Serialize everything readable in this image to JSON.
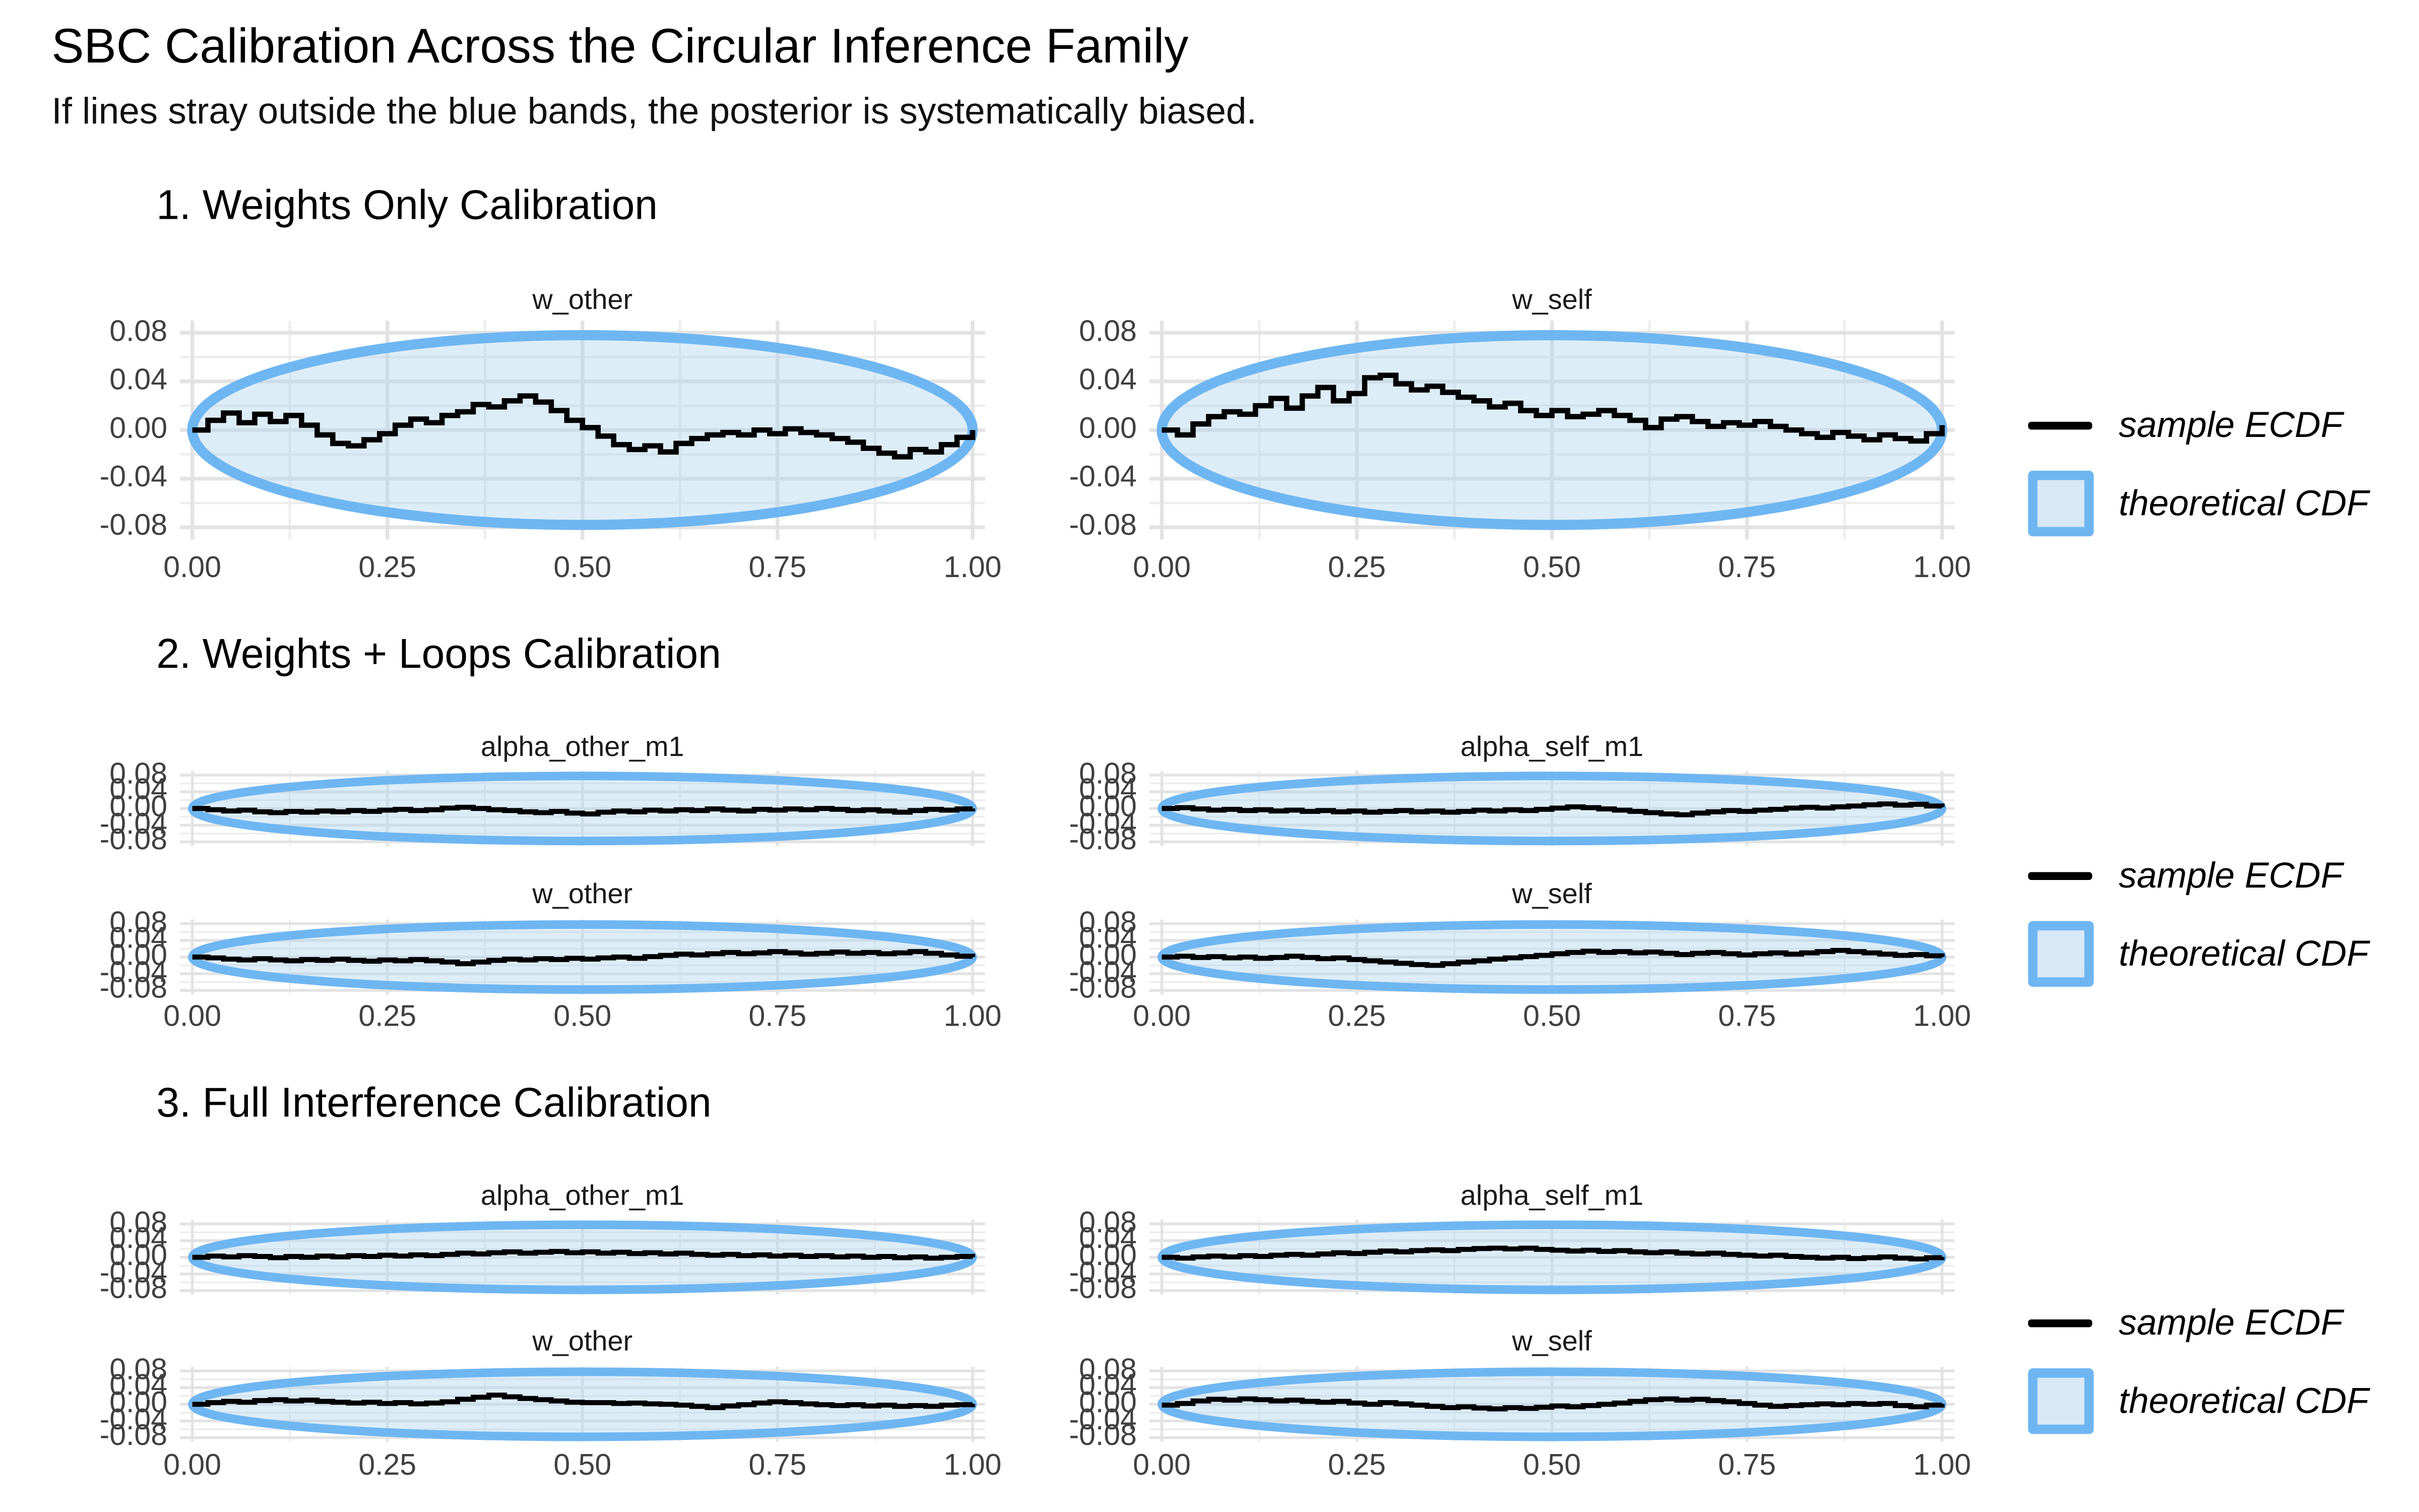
{
  "header": {
    "title": "SBC Calibration Across the Circular Inference Family",
    "subtitle": "If lines stray outside the blue bands, the posterior is systematically biased."
  },
  "legend": {
    "line_label": "sample ECDF",
    "band_label": "theoretical CDF"
  },
  "axis": {
    "x_tick_labels": [
      "0.00",
      "0.25",
      "0.50",
      "0.75",
      "1.00"
    ],
    "x_tick_values": [
      0,
      0.25,
      0.5,
      0.75,
      1
    ],
    "y_tick_labels": [
      "0.08",
      "0.04",
      "0.00",
      "-0.04",
      "-0.08"
    ],
    "y_tick_values": [
      0.08,
      0.04,
      0,
      -0.04,
      -0.08
    ],
    "y_minor_values": [
      0.06,
      0.02,
      -0.02,
      -0.06
    ],
    "x_minor_values": [
      0.125,
      0.375,
      0.625,
      0.875
    ]
  },
  "colors": {
    "band_fill": "#aed4ee",
    "band_border": "#6eb6f2",
    "ecdf_line": "#000000",
    "grid_major": "#e3e3e3",
    "grid_minor": "#ededed",
    "tick_text": "#404040",
    "text": "#000000"
  },
  "chart_data": {
    "type": "line",
    "subtype": "sbc_ecdf_diff_steps",
    "x_range": [
      0,
      1
    ],
    "y_domain": [
      -0.09,
      0.09
    ],
    "x_ticks": [
      0,
      0.25,
      0.5,
      0.75,
      1
    ],
    "y_ticks": [
      0.08,
      0.04,
      0,
      -0.04,
      -0.08
    ],
    "grid": true,
    "legend_position": "right",
    "band": {
      "shape": "ellipse",
      "half_height": 0.078,
      "label": "theoretical CDF"
    },
    "line_label": "sample ECDF",
    "n_points": 51,
    "x_spacing": "uniform",
    "sections": [
      {
        "heading": "1. Weights Only Calibration",
        "panel_size": "large",
        "panels": [
          {
            "title": "w_other",
            "ecdf_diff": [
              0.0,
              0.008,
              0.014,
              0.006,
              0.013,
              0.007,
              0.012,
              0.004,
              -0.004,
              -0.011,
              -0.013,
              -0.008,
              -0.003,
              0.004,
              0.009,
              0.006,
              0.012,
              0.015,
              0.021,
              0.019,
              0.024,
              0.028,
              0.023,
              0.016,
              0.008,
              0.002,
              -0.005,
              -0.012,
              -0.016,
              -0.013,
              -0.018,
              -0.011,
              -0.007,
              -0.004,
              -0.002,
              -0.004,
              0.0,
              -0.003,
              0.001,
              -0.002,
              -0.004,
              -0.007,
              -0.01,
              -0.015,
              -0.019,
              -0.022,
              -0.016,
              -0.018,
              -0.012,
              -0.006,
              0.0
            ]
          },
          {
            "title": "w_self",
            "ecdf_diff": [
              0.0,
              -0.004,
              0.005,
              0.011,
              0.015,
              0.013,
              0.02,
              0.026,
              0.018,
              0.028,
              0.035,
              0.024,
              0.03,
              0.043,
              0.045,
              0.038,
              0.033,
              0.036,
              0.031,
              0.027,
              0.024,
              0.019,
              0.022,
              0.016,
              0.012,
              0.016,
              0.011,
              0.013,
              0.016,
              0.012,
              0.008,
              0.002,
              0.009,
              0.011,
              0.007,
              0.003,
              0.006,
              0.004,
              0.007,
              0.003,
              0.0,
              -0.003,
              -0.006,
              -0.002,
              -0.005,
              -0.008,
              -0.004,
              -0.007,
              -0.009,
              -0.003,
              0.004
            ]
          }
        ]
      },
      {
        "heading": "2. Weights + Loops Calibration",
        "panel_size": "small",
        "panels": [
          {
            "title": "alpha_other_m1",
            "ecdf_diff": [
              0.0,
              -0.003,
              -0.006,
              -0.004,
              -0.008,
              -0.01,
              -0.007,
              -0.009,
              -0.006,
              -0.008,
              -0.005,
              -0.007,
              -0.004,
              -0.002,
              -0.005,
              -0.003,
              0.001,
              0.003,
              0.0,
              -0.003,
              -0.005,
              -0.008,
              -0.01,
              -0.007,
              -0.011,
              -0.013,
              -0.009,
              -0.006,
              -0.008,
              -0.004,
              -0.006,
              -0.003,
              -0.005,
              -0.001,
              -0.004,
              -0.006,
              -0.002,
              -0.004,
              -0.001,
              -0.003,
              0.0,
              -0.002,
              -0.005,
              -0.003,
              -0.006,
              -0.009,
              -0.005,
              -0.002,
              -0.004,
              -0.001,
              0.0
            ]
          },
          {
            "title": "alpha_self_m1",
            "ecdf_diff": [
              0.0,
              0.002,
              -0.001,
              -0.004,
              -0.002,
              -0.005,
              -0.003,
              -0.006,
              -0.004,
              -0.007,
              -0.005,
              -0.008,
              -0.006,
              -0.009,
              -0.007,
              -0.005,
              -0.008,
              -0.006,
              -0.009,
              -0.007,
              -0.004,
              -0.006,
              -0.003,
              -0.005,
              -0.002,
              0.001,
              0.004,
              0.002,
              -0.001,
              -0.004,
              -0.007,
              -0.01,
              -0.013,
              -0.015,
              -0.011,
              -0.008,
              -0.005,
              -0.007,
              -0.004,
              -0.002,
              0.001,
              0.003,
              0.001,
              0.004,
              0.006,
              0.009,
              0.011,
              0.008,
              0.01,
              0.006,
              0.003
            ]
          },
          {
            "title": "w_other",
            "ecdf_diff": [
              0.0,
              -0.002,
              -0.005,
              -0.007,
              -0.004,
              -0.007,
              -0.009,
              -0.006,
              -0.008,
              -0.005,
              -0.008,
              -0.01,
              -0.007,
              -0.009,
              -0.006,
              -0.009,
              -0.012,
              -0.016,
              -0.012,
              -0.008,
              -0.005,
              -0.007,
              -0.004,
              -0.006,
              -0.003,
              -0.005,
              -0.002,
              0.0,
              -0.003,
              0.001,
              0.004,
              0.007,
              0.005,
              0.008,
              0.011,
              0.008,
              0.01,
              0.013,
              0.01,
              0.007,
              0.009,
              0.012,
              0.009,
              0.011,
              0.008,
              0.01,
              0.013,
              0.009,
              0.005,
              0.002,
              0.0
            ]
          },
          {
            "title": "w_self",
            "ecdf_diff": [
              0.0,
              0.002,
              -0.001,
              0.001,
              -0.002,
              0.0,
              -0.003,
              -0.001,
              0.002,
              -0.001,
              -0.004,
              -0.002,
              -0.006,
              -0.009,
              -0.012,
              -0.015,
              -0.018,
              -0.02,
              -0.016,
              -0.012,
              -0.009,
              -0.005,
              -0.002,
              0.001,
              0.004,
              0.008,
              0.011,
              0.014,
              0.011,
              0.013,
              0.01,
              0.012,
              0.009,
              0.006,
              0.009,
              0.011,
              0.008,
              0.005,
              0.008,
              0.01,
              0.007,
              0.01,
              0.013,
              0.016,
              0.013,
              0.01,
              0.007,
              0.004,
              0.006,
              0.003,
              0.0
            ]
          }
        ]
      },
      {
        "heading": "3. Full Interference Calibration",
        "panel_size": "small",
        "panels": [
          {
            "title": "alpha_other_m1",
            "ecdf_diff": [
              0.0,
              0.003,
              0.001,
              0.004,
              0.002,
              -0.001,
              0.002,
              0.0,
              0.003,
              0.001,
              0.004,
              0.002,
              0.005,
              0.003,
              0.006,
              0.004,
              0.007,
              0.01,
              0.008,
              0.011,
              0.013,
              0.01,
              0.012,
              0.014,
              0.011,
              0.013,
              0.01,
              0.012,
              0.009,
              0.011,
              0.008,
              0.01,
              0.007,
              0.005,
              0.007,
              0.004,
              0.006,
              0.003,
              0.005,
              0.002,
              0.004,
              0.001,
              0.003,
              0.0,
              0.002,
              -0.001,
              0.001,
              -0.002,
              0.0,
              0.002,
              0.0
            ]
          },
          {
            "title": "alpha_self_m1",
            "ecdf_diff": [
              0.0,
              -0.002,
              0.001,
              0.003,
              0.001,
              0.004,
              0.002,
              0.005,
              0.007,
              0.005,
              0.008,
              0.011,
              0.009,
              0.012,
              0.015,
              0.013,
              0.016,
              0.018,
              0.016,
              0.019,
              0.021,
              0.022,
              0.02,
              0.022,
              0.019,
              0.017,
              0.015,
              0.017,
              0.014,
              0.016,
              0.013,
              0.011,
              0.013,
              0.01,
              0.008,
              0.01,
              0.007,
              0.005,
              0.003,
              0.005,
              0.002,
              0.0,
              -0.002,
              0.0,
              -0.003,
              -0.001,
              0.001,
              -0.002,
              -0.004,
              -0.001,
              0.001
            ]
          },
          {
            "title": "w_other",
            "ecdf_diff": [
              0.0,
              0.004,
              0.007,
              0.005,
              0.009,
              0.011,
              0.008,
              0.01,
              0.007,
              0.005,
              0.003,
              0.005,
              0.002,
              0.004,
              0.001,
              0.003,
              0.006,
              0.012,
              0.017,
              0.022,
              0.018,
              0.014,
              0.011,
              0.008,
              0.005,
              0.004,
              0.004,
              0.002,
              0.003,
              0.001,
              0.0,
              -0.002,
              -0.005,
              -0.008,
              -0.004,
              -0.001,
              0.003,
              0.006,
              0.004,
              0.001,
              -0.001,
              -0.003,
              -0.001,
              -0.004,
              -0.002,
              -0.005,
              -0.003,
              -0.005,
              -0.002,
              -0.001,
              0.001
            ]
          },
          {
            "title": "w_self",
            "ecdf_diff": [
              -0.002,
              0.002,
              0.008,
              0.012,
              0.01,
              0.013,
              0.011,
              0.008,
              0.01,
              0.007,
              0.005,
              0.007,
              0.003,
              0.0,
              0.004,
              0.001,
              -0.002,
              -0.005,
              -0.008,
              -0.006,
              -0.009,
              -0.011,
              -0.008,
              -0.01,
              -0.007,
              -0.004,
              -0.006,
              -0.003,
              0.0,
              0.003,
              0.007,
              0.011,
              0.013,
              0.01,
              0.012,
              0.009,
              0.006,
              0.002,
              -0.002,
              -0.005,
              -0.003,
              -0.001,
              0.001,
              -0.001,
              0.002,
              0.0,
              0.002,
              -0.003,
              -0.006,
              -0.002,
              0.001
            ]
          }
        ]
      }
    ]
  }
}
